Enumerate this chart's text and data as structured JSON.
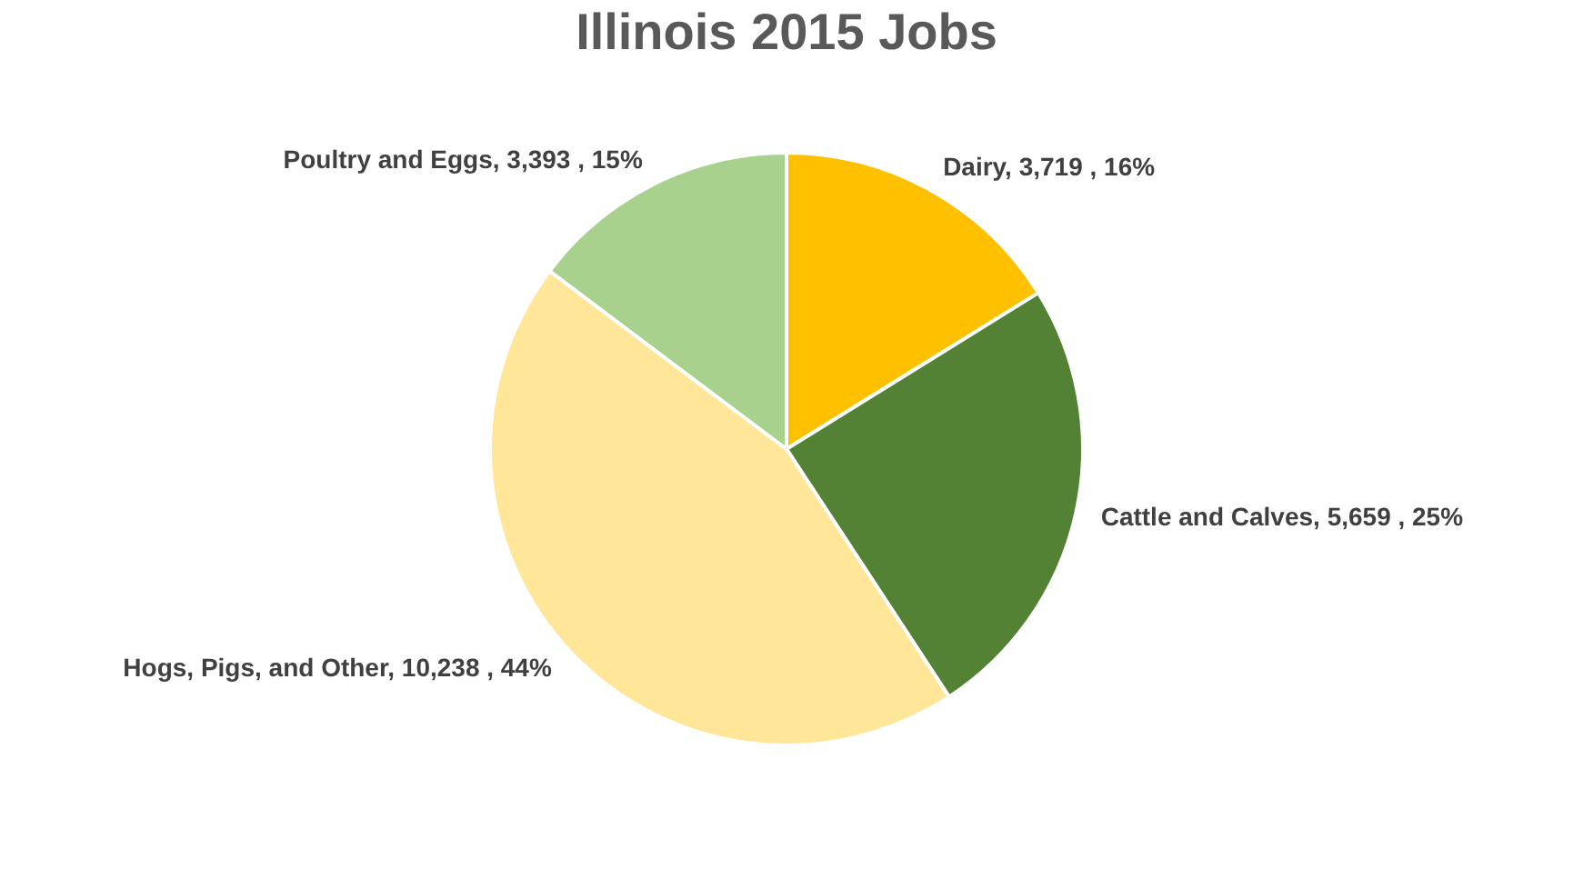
{
  "chart_data": {
    "type": "pie",
    "title": "Illinois 2015 Jobs",
    "categories": [
      "Dairy",
      "Cattle and Calves",
      "Hogs, Pigs, and Other",
      "Poultry and Eggs"
    ],
    "values": [
      3719,
      5659,
      10238,
      3393
    ],
    "colors": [
      "#ffc000",
      "#548235",
      "#ffe699",
      "#a9d18e"
    ],
    "value_labels": [
      "3,719 , 16%",
      "5,659 , 25%",
      "10,238 , 44%",
      "3,393 , 15%"
    ],
    "legend": false
  }
}
